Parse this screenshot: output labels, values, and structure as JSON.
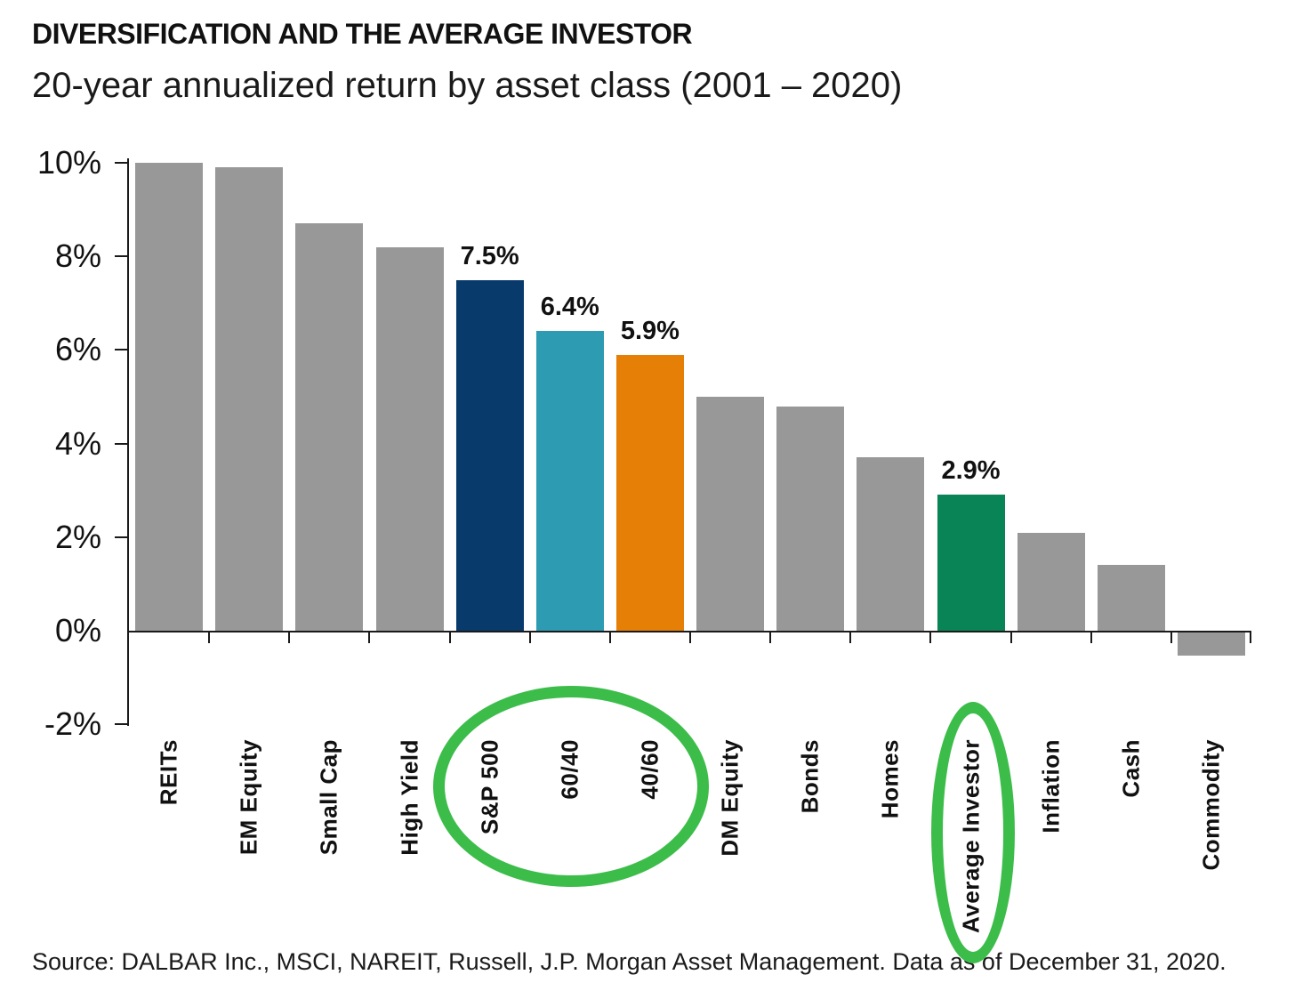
{
  "header": {
    "title": "DIVERSIFICATION AND THE AVERAGE INVESTOR",
    "subtitle": "20-year annualized return by asset class (2001 – 2020)"
  },
  "footer": {
    "source": "Source: DALBAR Inc., MSCI, NAREIT, Russell, J.P. Morgan Asset Management. Data as of December 31, 2020."
  },
  "colors": {
    "default_bar": "#989898",
    "sp500_navy": "#083a6c",
    "mix6040_teal": "#2d9cb2",
    "mix4060_orange": "#e67f06",
    "average_investor_green": "#088456",
    "highlight_ellipse_green": "#3cbd4a",
    "axis": "#1a1a1a"
  },
  "chart_data": {
    "type": "bar",
    "title": "DIVERSIFICATION AND THE AVERAGE INVESTOR",
    "subtitle": "20-year annualized return by asset class (2001 – 2020)",
    "categories": [
      "REITs",
      "EM Equity",
      "Small Cap",
      "High Yield",
      "S&P 500",
      "60/40",
      "40/60",
      "DM Equity",
      "Bonds",
      "Homes",
      "Average Investor",
      "Inflation",
      "Cash",
      "Commodity"
    ],
    "values": [
      10.0,
      9.9,
      8.7,
      8.2,
      7.5,
      6.4,
      5.9,
      5.0,
      4.8,
      3.7,
      2.9,
      2.1,
      1.4,
      -0.5
    ],
    "bar_colors": [
      "#989898",
      "#989898",
      "#989898",
      "#989898",
      "#083a6c",
      "#2d9cb2",
      "#e67f06",
      "#989898",
      "#989898",
      "#989898",
      "#088456",
      "#989898",
      "#989898",
      "#989898"
    ],
    "data_labels": [
      "",
      "",
      "",
      "",
      "7.5%",
      "6.4%",
      "5.9%",
      "",
      "",
      "",
      "2.9%",
      "",
      "",
      ""
    ],
    "y_ticks": [
      "10%",
      "8%",
      "6%",
      "4%",
      "2%",
      "0%",
      "-2%"
    ],
    "y_tick_values": [
      10,
      8,
      6,
      4,
      2,
      0,
      -2
    ],
    "ylim": [
      -2,
      10
    ],
    "xlabel": "",
    "ylabel": "",
    "grid": false,
    "legend": "none",
    "annotations": [
      "green ellipse circling x-axis labels S&P 500, 60/40 and 40/60",
      "green ellipse circling x-axis label Average Investor"
    ]
  }
}
